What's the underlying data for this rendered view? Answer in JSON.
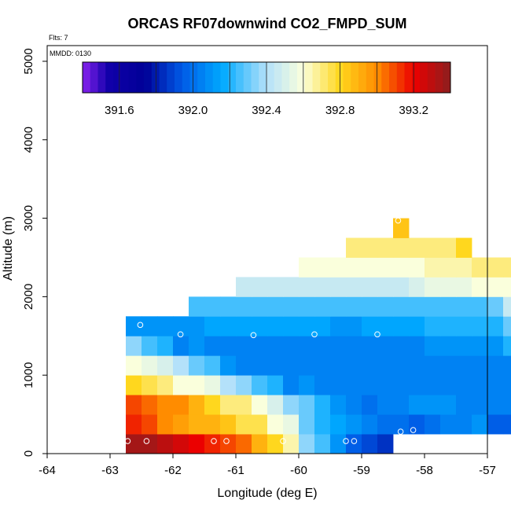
{
  "chart_data": {
    "type": "heatmap",
    "title": "ORCAS RF07downwind CO2_FMPD_SUM",
    "note_flights": "Flts: 7",
    "note_date": "MMDD: 0130",
    "xlabel": "Longitude (deg E)",
    "ylabel": "Altitude (m)",
    "xlim": [
      -64,
      -57
    ],
    "ylim": [
      0,
      5200
    ],
    "x_ticks": [
      -64,
      -63,
      -62,
      -61,
      -60,
      -59,
      -58,
      -57
    ],
    "x_tick_labels": [
      "-64",
      "-63",
      "-62",
      "-61",
      "-60",
      "-59",
      "-58",
      "-57"
    ],
    "y_ticks": [
      0,
      1000,
      2000,
      3000,
      4000,
      5000
    ],
    "y_tick_labels": [
      "0",
      "1000",
      "2000",
      "3000",
      "4000",
      "5000"
    ],
    "colorbar": {
      "min": 391.4,
      "max": 393.4,
      "ticks": [
        391.6,
        392.0,
        392.4,
        392.8,
        393.2
      ],
      "tick_labels": [
        "391.6",
        "392.0",
        "392.4",
        "392.8",
        "393.2"
      ]
    },
    "cell_width_deg": 0.25,
    "row_height_m": 250,
    "rows": [
      {
        "alt": 0,
        "lon_start": -62.75,
        "values": [
          393.35,
          393.35,
          393.3,
          393.25,
          393.2,
          393.15,
          393.1,
          393.05,
          392.9,
          392.8,
          392.65,
          392.35,
          392.25,
          392.1,
          391.95,
          391.9,
          391.85
        ]
      },
      {
        "alt": 250,
        "lon_start": -62.75,
        "values": [
          393.15,
          393.1,
          393.0,
          392.95,
          392.9,
          392.9,
          392.85,
          392.75,
          392.75,
          392.6,
          392.55,
          392.3,
          392.2,
          392.15,
          392.1,
          392.05,
          392.0,
          392.0,
          391.95,
          392.0,
          392.05,
          392.05,
          392.1,
          391.95,
          391.95,
          391.95
        ]
      },
      {
        "alt": 500,
        "lon_start": -62.75,
        "values": [
          393.1,
          393.05,
          393.0,
          393.0,
          392.9,
          392.8,
          392.7,
          392.7,
          392.6,
          392.5,
          392.35,
          392.3,
          392.2,
          392.1,
          392.05,
          392.0,
          392.05,
          392.05,
          392.1,
          392.1,
          392.1,
          392.05,
          392.05,
          392.05,
          392.05
        ]
      },
      {
        "alt": 750,
        "lon_start": -62.75,
        "values": [
          392.8,
          392.75,
          392.7,
          392.6,
          392.6,
          392.55,
          392.4,
          392.35,
          392.25,
          392.2,
          392.05,
          392.1,
          392.05,
          392.05,
          392.05,
          392.05,
          392.05,
          392.05,
          392.05,
          392.05,
          392.05,
          392.05,
          392.05,
          392.05,
          392.05
        ]
      },
      {
        "alt": 1000,
        "lon_start": -62.75,
        "values": [
          392.6,
          392.55,
          392.5,
          392.4,
          392.3,
          392.25,
          392.1,
          392.05,
          392.05,
          392.05,
          392.05,
          392.05,
          392.05,
          392.05,
          392.05,
          392.05,
          392.05,
          392.05,
          392.05,
          392.05,
          392.05,
          392.05,
          392.05,
          392.05,
          392.05
        ]
      },
      {
        "alt": 1250,
        "lon_start": -62.75,
        "values": [
          392.35,
          392.25,
          392.2,
          392.05,
          392.1,
          392.05,
          392.05,
          392.05,
          392.05,
          392.05,
          392.05,
          392.05,
          392.05,
          392.05,
          392.05,
          392.05,
          392.05,
          392.05,
          392.05,
          392.1,
          392.1,
          392.1,
          392.1,
          392.1,
          392.2
        ]
      },
      {
        "alt": 1500,
        "lon_start": -62.75,
        "values": [
          392.1,
          392.1,
          392.1,
          392.1,
          392.1,
          392.15,
          392.15,
          392.15,
          392.15,
          392.15,
          392.15,
          392.15,
          392.15,
          392.1,
          392.1,
          392.15,
          392.15,
          392.15,
          392.15,
          392.2,
          392.2,
          392.2,
          392.2,
          392.2,
          392.3
        ]
      },
      {
        "alt": 1750,
        "lon_start": -61.75,
        "values": [
          392.25,
          392.25,
          392.25,
          392.25,
          392.25,
          392.25,
          392.25,
          392.25,
          392.25,
          392.25,
          392.25,
          392.25,
          392.25,
          392.25,
          392.25,
          392.25,
          392.25,
          392.25,
          392.25,
          392.3,
          392.45
        ]
      },
      {
        "alt": 2000,
        "lon_start": -61.0,
        "values": [
          392.45,
          392.45,
          392.45,
          392.45,
          392.45,
          392.45,
          392.45,
          392.45,
          392.45,
          392.45,
          392.45,
          392.5,
          392.55,
          392.55,
          392.55,
          392.6,
          392.6,
          392.6
        ]
      },
      {
        "alt": 2250,
        "lon_start": -60.0,
        "values": [
          392.6,
          392.6,
          392.6,
          392.6,
          392.6,
          392.6,
          392.6,
          392.6,
          392.65,
          392.65,
          392.65,
          392.7,
          392.7,
          392.7
        ]
      },
      {
        "alt": 2500,
        "lon_start": -59.25,
        "values": [
          392.7,
          392.7,
          392.7,
          392.7,
          392.7,
          392.7,
          392.7,
          392.8
        ]
      },
      {
        "alt": 2750,
        "lon_start": -58.5,
        "values": [
          392.85
        ]
      }
    ],
    "sample_points": [
      {
        "lon": -62.72,
        "alt": 160
      },
      {
        "lon": -62.42,
        "alt": 160
      },
      {
        "lon": -61.35,
        "alt": 160
      },
      {
        "lon": -61.15,
        "alt": 160
      },
      {
        "lon": -60.25,
        "alt": 160
      },
      {
        "lon": -59.25,
        "alt": 160
      },
      {
        "lon": -59.12,
        "alt": 160
      },
      {
        "lon": -58.38,
        "alt": 280
      },
      {
        "lon": -58.18,
        "alt": 300
      },
      {
        "lon": -62.52,
        "alt": 1640
      },
      {
        "lon": -61.88,
        "alt": 1520
      },
      {
        "lon": -60.72,
        "alt": 1510
      },
      {
        "lon": -59.75,
        "alt": 1520
      },
      {
        "lon": -58.75,
        "alt": 1520
      },
      {
        "lon": -58.42,
        "alt": 2970
      }
    ]
  }
}
